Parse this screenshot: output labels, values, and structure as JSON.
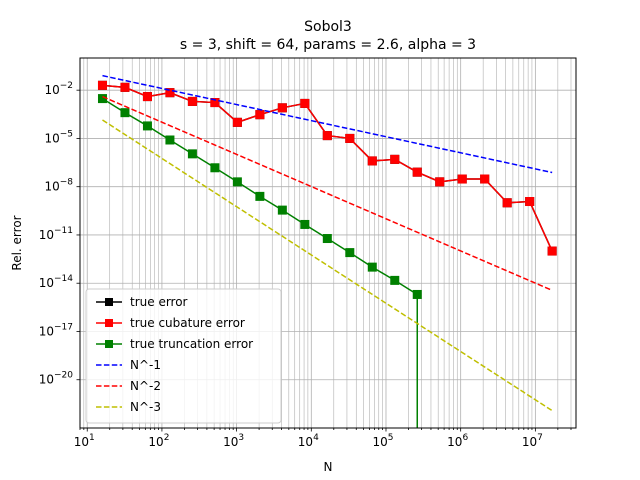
{
  "chart_data": {
    "type": "line",
    "title": "Sobol3",
    "subtitle": "s = 3, shift = 64, params = 2.6, alpha = 3",
    "xlabel": "N",
    "ylabel": "Rel. error",
    "xscale": "log",
    "yscale": "log",
    "xlim": [
      8,
      35000000
    ],
    "ylim": [
      1e-23,
      1
    ],
    "grid": true,
    "grid_minor": true,
    "legend_position": "lower-left",
    "x_ticks": [
      {
        "value": 10,
        "base": "10",
        "exp": "1"
      },
      {
        "value": 100,
        "base": "10",
        "exp": "2"
      },
      {
        "value": 1000,
        "base": "10",
        "exp": "3"
      },
      {
        "value": 10000,
        "base": "10",
        "exp": "4"
      },
      {
        "value": 100000,
        "base": "10",
        "exp": "5"
      },
      {
        "value": 1000000,
        "base": "10",
        "exp": "6"
      },
      {
        "value": 10000000,
        "base": "10",
        "exp": "7"
      }
    ],
    "y_ticks": [
      {
        "value": 1e-20,
        "base": "10",
        "exp": "−20"
      },
      {
        "value": 1e-17,
        "base": "10",
        "exp": "−17"
      },
      {
        "value": 1e-14,
        "base": "10",
        "exp": "−14"
      },
      {
        "value": 1e-11,
        "base": "10",
        "exp": "−11"
      },
      {
        "value": 1e-08,
        "base": "10",
        "exp": "−8"
      },
      {
        "value": 1e-05,
        "base": "10",
        "exp": "−5"
      },
      {
        "value": 0.01,
        "base": "10",
        "exp": "−2"
      }
    ],
    "series": [
      {
        "name": "true error",
        "color": "#000000",
        "style": "solid-marker-square",
        "x": [
          16,
          32,
          64,
          128,
          256,
          512,
          1024,
          2048,
          4096,
          8192,
          16384,
          32768,
          65536,
          131072,
          262144,
          524288,
          1048576,
          2097152,
          4194304,
          8388608,
          16777216
        ],
        "y": [
          0.02,
          0.015,
          0.004,
          0.007,
          0.002,
          0.0017,
          0.0001,
          0.0003,
          0.0008,
          0.0015,
          1.5e-05,
          1e-05,
          4e-07,
          5e-07,
          8e-08,
          2e-08,
          3e-08,
          3e-08,
          1e-09,
          1.2e-09,
          1e-12
        ]
      },
      {
        "name": "true cubature error",
        "color": "#ff0000",
        "style": "solid-marker-square",
        "x": [
          16,
          32,
          64,
          128,
          256,
          512,
          1024,
          2048,
          4096,
          8192,
          16384,
          32768,
          65536,
          131072,
          262144,
          524288,
          1048576,
          2097152,
          4194304,
          8388608,
          16777216
        ],
        "y": [
          0.02,
          0.015,
          0.004,
          0.007,
          0.002,
          0.0017,
          0.0001,
          0.0003,
          0.0008,
          0.0015,
          1.5e-05,
          1e-05,
          4e-07,
          5e-07,
          8e-08,
          2e-08,
          3e-08,
          3e-08,
          1e-09,
          1.2e-09,
          1e-12
        ]
      },
      {
        "name": "true truncation error",
        "color": "#008000",
        "style": "solid-marker-square",
        "x": [
          16,
          32,
          64,
          128,
          256,
          512,
          1024,
          2048,
          4096,
          8192,
          16384,
          32768,
          65536,
          131072,
          262144
        ],
        "y": [
          0.003,
          0.0004,
          6e-05,
          8e-06,
          1.1e-06,
          1.5e-07,
          2e-08,
          2.5e-09,
          3.5e-10,
          4.5e-11,
          6e-12,
          8e-13,
          1e-13,
          1.5e-14,
          2e-15
        ],
        "drop_at_x": 262144
      },
      {
        "name": "N^-1",
        "color": "#0000ff",
        "style": "dashed",
        "x": [
          16,
          16777216
        ],
        "y": [
          0.08,
          7.63e-08
        ]
      },
      {
        "name": "N^-2",
        "color": "#ff0000",
        "style": "dashed",
        "x": [
          16,
          16777216
        ],
        "y": [
          0.004,
          3.6e-15
        ]
      },
      {
        "name": "N^-3",
        "color": "#bfbf00",
        "style": "dashed",
        "x": [
          16,
          16777216
        ],
        "y": [
          0.00014,
          1.2e-22
        ]
      }
    ]
  }
}
